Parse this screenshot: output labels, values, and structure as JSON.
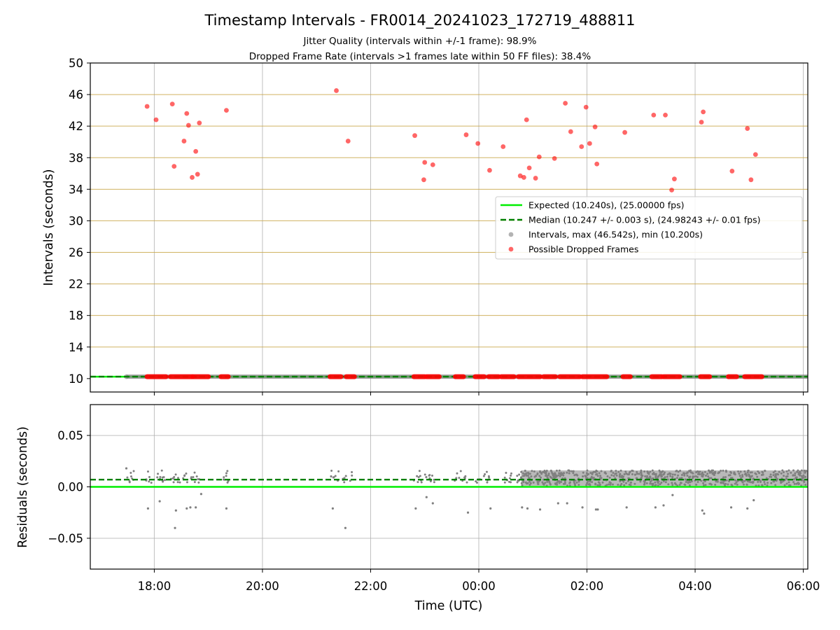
{
  "chart_data": [
    {
      "type": "scatter",
      "title": "Timestamp Intervals - FR0014_20241023_172719_488811",
      "subtitle_1": "Jitter Quality (intervals within +/-1 frame): 98.9%",
      "subtitle_2": "Dropped Frame Rate (intervals >1 frames late within 50 FF files): 38.4%",
      "xlabel": "",
      "ylabel": "Intervals (seconds)",
      "ylim": [
        8.3,
        50
      ],
      "xlim": [
        "16:49",
        "06:05"
      ],
      "y_ticks": [
        "10",
        "14",
        "18",
        "22",
        "26",
        "30",
        "34",
        "38",
        "42",
        "46",
        "50"
      ],
      "x_ticks": [
        "18:00",
        "20:00",
        "22:00",
        "00:00",
        "02:00",
        "04:00",
        "06:00"
      ],
      "grid": true,
      "legend_position": "center-right",
      "legend": [
        "Expected (10.240s), (25.00000 fps)",
        "Median (10.247 +/- 0.003 s), (24.98243 +/- 0.01 fps)",
        "Intervals, max (46.542s), min (10.200s)",
        "Possible Dropped Frames"
      ],
      "expected_interval": 10.24,
      "median_interval": 10.247,
      "intervals_range": [
        "17:29",
        "06:05"
      ],
      "dropped_frames": [
        {
          "x": "17:52",
          "y": 44.5
        },
        {
          "x": "18:02",
          "y": 42.8
        },
        {
          "x": "18:20",
          "y": 44.8
        },
        {
          "x": "18:22",
          "y": 36.9
        },
        {
          "x": "18:33",
          "y": 40.1
        },
        {
          "x": "18:36",
          "y": 43.6
        },
        {
          "x": "18:38",
          "y": 42.1
        },
        {
          "x": "18:42",
          "y": 35.5
        },
        {
          "x": "18:46",
          "y": 38.8
        },
        {
          "x": "18:48",
          "y": 35.9
        },
        {
          "x": "18:50",
          "y": 42.4
        },
        {
          "x": "19:20",
          "y": 44.0
        },
        {
          "x": "21:22",
          "y": 46.5
        },
        {
          "x": "21:35",
          "y": 40.1
        },
        {
          "x": "22:49",
          "y": 40.8
        },
        {
          "x": "22:59",
          "y": 35.2
        },
        {
          "x": "23:00",
          "y": 37.4
        },
        {
          "x": "23:09",
          "y": 37.1
        },
        {
          "x": "23:46",
          "y": 40.9
        },
        {
          "x": "23:59",
          "y": 39.8
        },
        {
          "x": "00:12",
          "y": 36.4
        },
        {
          "x": "00:27",
          "y": 39.4
        },
        {
          "x": "00:46",
          "y": 35.7
        },
        {
          "x": "00:50",
          "y": 35.5
        },
        {
          "x": "00:53",
          "y": 42.8
        },
        {
          "x": "00:56",
          "y": 36.7
        },
        {
          "x": "01:03",
          "y": 35.4
        },
        {
          "x": "01:07",
          "y": 38.1
        },
        {
          "x": "01:24",
          "y": 37.9
        },
        {
          "x": "01:36",
          "y": 44.9
        },
        {
          "x": "01:42",
          "y": 41.3
        },
        {
          "x": "01:54",
          "y": 39.4
        },
        {
          "x": "01:59",
          "y": 44.4
        },
        {
          "x": "02:03",
          "y": 39.8
        },
        {
          "x": "02:09",
          "y": 41.9
        },
        {
          "x": "02:11",
          "y": 37.2
        },
        {
          "x": "02:42",
          "y": 41.2
        },
        {
          "x": "03:14",
          "y": 43.4
        },
        {
          "x": "03:27",
          "y": 43.4
        },
        {
          "x": "03:34",
          "y": 33.9
        },
        {
          "x": "03:37",
          "y": 35.3
        },
        {
          "x": "04:07",
          "y": 42.5
        },
        {
          "x": "04:09",
          "y": 43.8
        },
        {
          "x": "04:41",
          "y": 36.3
        },
        {
          "x": "04:58",
          "y": 41.7
        },
        {
          "x": "05:02",
          "y": 35.2
        },
        {
          "x": "05:07",
          "y": 38.4
        }
      ],
      "dropped_baseline_clusters": [
        [
          "17:52",
          "18:13"
        ],
        [
          "18:18",
          "18:42"
        ],
        [
          "18:43",
          "19:00"
        ],
        [
          "19:14",
          "19:22"
        ],
        [
          "21:15",
          "21:27"
        ],
        [
          "21:33",
          "21:42"
        ],
        [
          "22:48",
          "23:00"
        ],
        [
          "23:02",
          "23:16"
        ],
        [
          "23:34",
          "23:43"
        ],
        [
          "23:56",
          "24:06"
        ],
        [
          "00:11",
          "00:22"
        ],
        [
          "00:25",
          "00:39"
        ],
        [
          "00:44",
          "01:08"
        ],
        [
          "01:12",
          "01:25"
        ],
        [
          "01:30",
          "01:52"
        ],
        [
          "01:55",
          "02:22"
        ],
        [
          "02:40",
          "02:48"
        ],
        [
          "03:12",
          "03:23"
        ],
        [
          "03:25",
          "03:43"
        ],
        [
          "04:06",
          "04:16"
        ],
        [
          "04:37",
          "04:46"
        ],
        [
          "04:55",
          "05:14"
        ]
      ]
    },
    {
      "type": "scatter",
      "xlabel": "Time (UTC)",
      "ylabel": "Residuals (seconds)",
      "ylim": [
        -0.08,
        0.08
      ],
      "xlim": [
        "16:49",
        "06:05"
      ],
      "y_ticks": [
        "−0.05",
        "0.00",
        "0.05"
      ],
      "x_ticks": [
        "18:00",
        "20:00",
        "22:00",
        "00:00",
        "02:00",
        "04:00",
        "06:00"
      ],
      "grid": true,
      "expected_residual": 0.0,
      "median_residual": 0.007,
      "dense_band": {
        "x_from": "00:47",
        "x_to": "06:05",
        "y_min": 0.001,
        "y_max": 0.016
      },
      "segments": [
        [
          "17:29",
          "17:38"
        ],
        [
          "17:50",
          "18:15"
        ],
        [
          "18:18",
          "18:35"
        ],
        [
          "18:35",
          "18:52"
        ],
        [
          "19:15",
          "19:22"
        ],
        [
          "21:15",
          "21:25"
        ],
        [
          "21:28",
          "21:40"
        ],
        [
          "22:48",
          "23:15"
        ],
        [
          "23:32",
          "23:48"
        ],
        [
          "23:56",
          "24:12"
        ],
        [
          "00:26",
          "00:40"
        ],
        [
          "00:42",
          "00:48"
        ]
      ],
      "outliers": [
        {
          "x": "17:29",
          "y": 0.018
        },
        {
          "x": "17:53",
          "y": -0.021
        },
        {
          "x": "18:06",
          "y": -0.014
        },
        {
          "x": "18:24",
          "y": -0.023
        },
        {
          "x": "18:23",
          "y": -0.04
        },
        {
          "x": "18:36",
          "y": -0.021
        },
        {
          "x": "18:40",
          "y": -0.02
        },
        {
          "x": "18:46",
          "y": -0.02
        },
        {
          "x": "18:52",
          "y": -0.007
        },
        {
          "x": "19:20",
          "y": -0.021
        },
        {
          "x": "21:18",
          "y": -0.021
        },
        {
          "x": "21:32",
          "y": -0.04
        },
        {
          "x": "22:50",
          "y": -0.021
        },
        {
          "x": "23:02",
          "y": -0.01
        },
        {
          "x": "23:09",
          "y": -0.016
        },
        {
          "x": "23:48",
          "y": -0.025
        },
        {
          "x": "00:13",
          "y": -0.021
        },
        {
          "x": "00:48",
          "y": -0.02
        },
        {
          "x": "00:54",
          "y": -0.021
        },
        {
          "x": "01:08",
          "y": -0.022
        },
        {
          "x": "01:28",
          "y": -0.016
        },
        {
          "x": "01:38",
          "y": -0.016
        },
        {
          "x": "01:55",
          "y": -0.02
        },
        {
          "x": "02:10",
          "y": -0.022
        },
        {
          "x": "02:12",
          "y": -0.022
        },
        {
          "x": "02:44",
          "y": -0.02
        },
        {
          "x": "03:16",
          "y": -0.02
        },
        {
          "x": "03:25",
          "y": -0.018
        },
        {
          "x": "03:35",
          "y": -0.008
        },
        {
          "x": "04:08",
          "y": -0.023
        },
        {
          "x": "04:10",
          "y": -0.026
        },
        {
          "x": "04:40",
          "y": -0.02
        },
        {
          "x": "04:58",
          "y": -0.021
        },
        {
          "x": "05:05",
          "y": -0.013
        }
      ]
    }
  ],
  "colors": {
    "expected": "#00ee00",
    "median": "#008000",
    "intervals": "#808080",
    "dropped": "#ff0000",
    "dropped_alpha": "#ff5555",
    "grid": "#b0b0b0",
    "hgrid_top": "#c8a648"
  }
}
